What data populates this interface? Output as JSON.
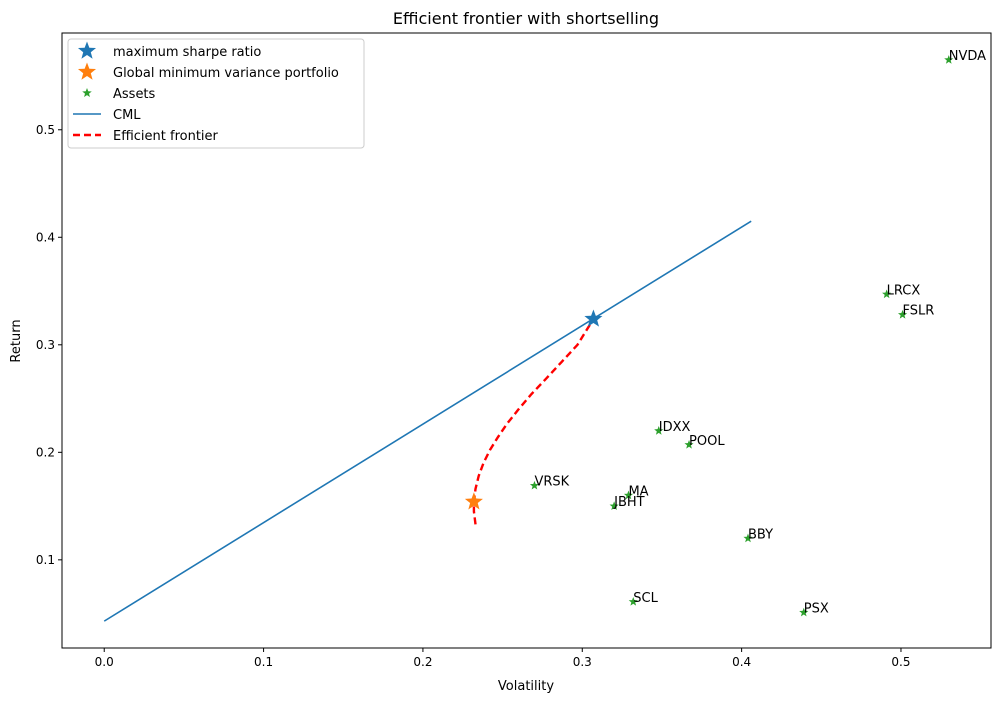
{
  "chart_data": {
    "type": "scatter",
    "title": "Efficient frontier with shortselling",
    "xlabel": "Volatility",
    "ylabel": "Return",
    "xlim": [
      -0.0265,
      0.5565
    ],
    "ylim": [
      0.018,
      0.59
    ],
    "xticks": [
      0.0,
      0.1,
      0.2,
      0.3,
      0.4,
      0.5
    ],
    "xtick_labels": [
      "0.0",
      "0.1",
      "0.2",
      "0.3",
      "0.4",
      "0.5"
    ],
    "yticks": [
      0.1,
      0.2,
      0.3,
      0.4,
      0.5
    ],
    "ytick_labels": [
      "0.1",
      "0.2",
      "0.3",
      "0.4",
      "0.5"
    ],
    "grid": false,
    "legend_position": "top-left",
    "legend": [
      {
        "label": "maximum sharpe ratio",
        "marker": "star-large",
        "color": "#1f77b4"
      },
      {
        "label": "Global minimum variance portfolio",
        "marker": "star-large",
        "color": "#ff7f0e"
      },
      {
        "label": "Assets",
        "marker": "star-small",
        "color": "#2ca02c"
      },
      {
        "label": "CML",
        "marker": "line",
        "color": "#1f77b4"
      },
      {
        "label": "Efficient frontier",
        "marker": "dashed-line",
        "color": "#ff0000"
      }
    ],
    "max_sharpe": {
      "x": 0.307,
      "y": 0.324,
      "color": "#1f77b4"
    },
    "gmv": {
      "x": 0.232,
      "y": 0.154,
      "color": "#ff7f0e"
    },
    "cml": {
      "x": [
        0.0,
        0.406
      ],
      "y": [
        0.043,
        0.415
      ],
      "color": "#1f77b4"
    },
    "frontier": {
      "x": [
        0.233,
        0.232,
        0.232,
        0.233,
        0.235,
        0.238,
        0.242,
        0.247,
        0.253,
        0.26,
        0.268,
        0.277,
        0.287,
        0.297,
        0.307
      ],
      "y": [
        0.133,
        0.145,
        0.154,
        0.166,
        0.178,
        0.19,
        0.202,
        0.214,
        0.227,
        0.24,
        0.254,
        0.268,
        0.284,
        0.3,
        0.324
      ],
      "color": "#ff0000"
    },
    "assets": {
      "color": "#2ca02c",
      "points": [
        {
          "name": "NVDA",
          "x": 0.53,
          "y": 0.565
        },
        {
          "name": "LRCX",
          "x": 0.491,
          "y": 0.347
        },
        {
          "name": "FSLR",
          "x": 0.501,
          "y": 0.328
        },
        {
          "name": "IDXX",
          "x": 0.348,
          "y": 0.22
        },
        {
          "name": "POOL",
          "x": 0.367,
          "y": 0.207
        },
        {
          "name": "VRSK",
          "x": 0.27,
          "y": 0.169
        },
        {
          "name": "MA",
          "x": 0.329,
          "y": 0.16
        },
        {
          "name": "JBHT",
          "x": 0.32,
          "y": 0.15
        },
        {
          "name": "BBY",
          "x": 0.404,
          "y": 0.12
        },
        {
          "name": "SCL",
          "x": 0.332,
          "y": 0.061
        },
        {
          "name": "PSX",
          "x": 0.439,
          "y": 0.051
        }
      ]
    }
  }
}
